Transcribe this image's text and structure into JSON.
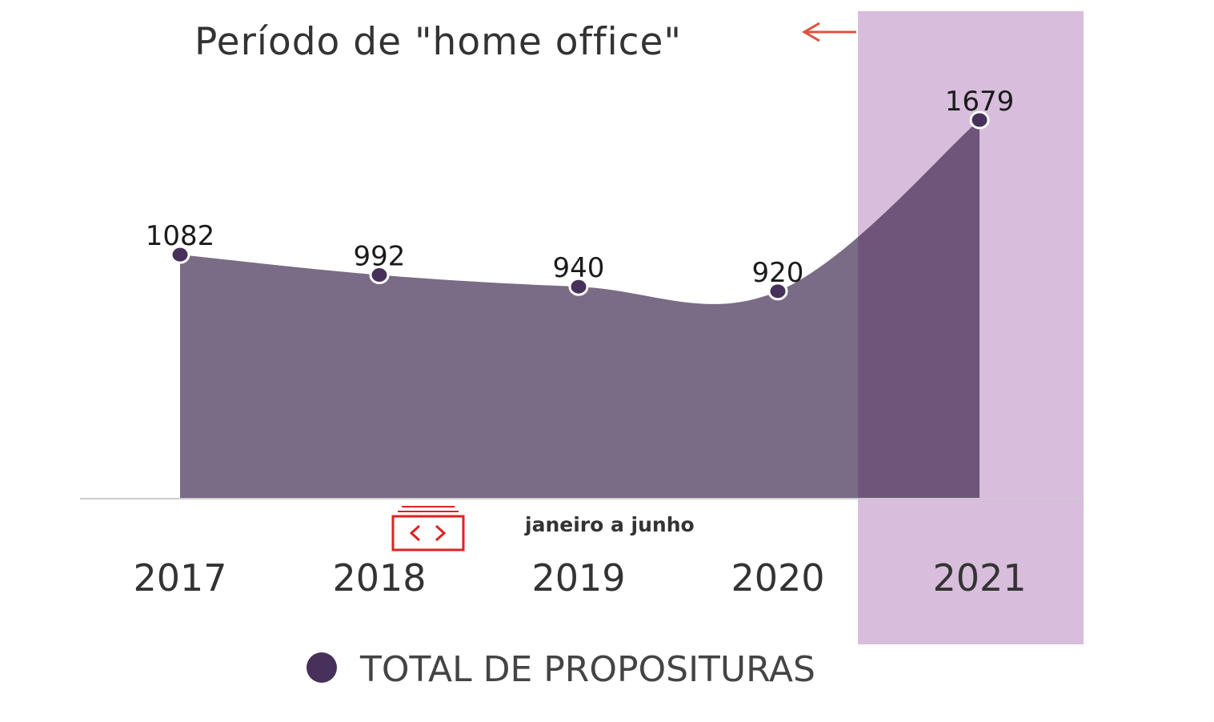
{
  "annotation": {
    "text": "Período de \"home office\"",
    "highlight_color": "#d8bddc",
    "arrow_color": "#e05040"
  },
  "note": {
    "text": "janeiro a junho"
  },
  "embed_icon": "embed-code-icon",
  "colors": {
    "area": "#7a6b87",
    "area_highlight": "#6f5579",
    "marker": "#47315a",
    "marker_outline": "#ffffff",
    "axis": "#cccccc",
    "embed_icon": "#e02020"
  },
  "chart_data": {
    "type": "area",
    "x": [
      "2017",
      "2018",
      "2019",
      "2020",
      "2021"
    ],
    "series": [
      {
        "name": "TOTAL DE PROPOSITURAS",
        "values": [
          1082,
          992,
          940,
          920,
          1679
        ],
        "data_labels": [
          "1082",
          "992",
          "940",
          "920",
          "1679"
        ]
      }
    ],
    "ylim": [
      0,
      1850
    ],
    "highlight_category": "2021",
    "legend": "bottom",
    "grid": false,
    "title": "",
    "xlabel": "",
    "ylabel": ""
  }
}
